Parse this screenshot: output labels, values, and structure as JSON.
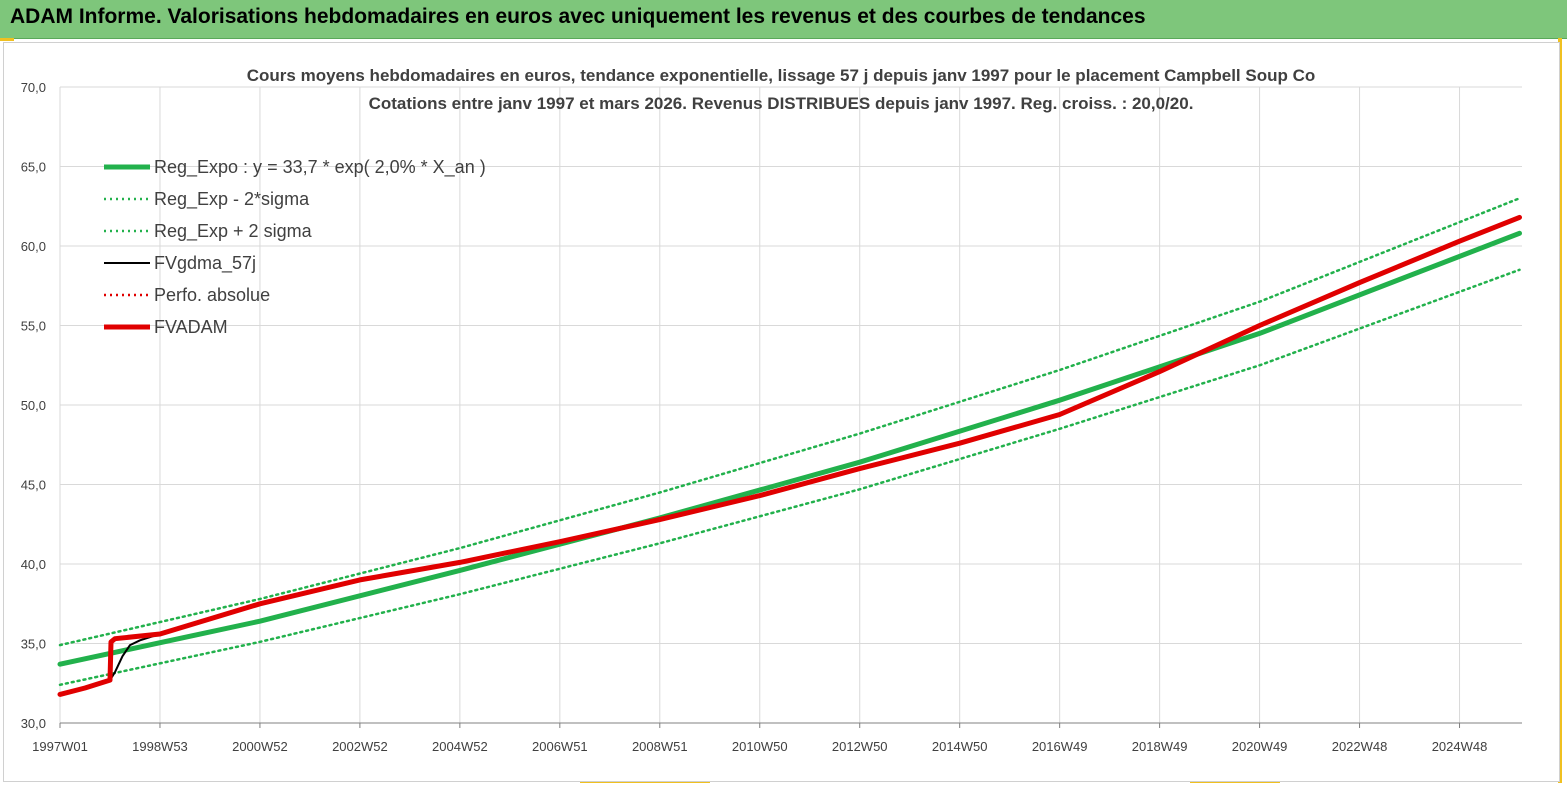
{
  "header": {
    "title": "ADAM Informe. Valorisations hebdomadaires en euros avec uniquement les revenus et des courbes de tendances"
  },
  "colors": {
    "header_bg": "#7ec67b",
    "reg_expo": "#22b14c",
    "band": "#22b14c",
    "fvgdma": "#000000",
    "perfo": "#e00000",
    "fvadam": "#e00000",
    "title_text": "#404040",
    "grid": "#d9d9d9"
  },
  "chart_data": {
    "type": "line",
    "title": "Cours moyens hebdomadaires en euros, tendance exponentielle, lissage 57 j depuis janv 1997 pour le placement Campbell Soup Co",
    "subtitle": "Cotations entre janv 1997 et mars 2026. Revenus DISTRIBUES depuis janv 1997. Reg. croiss. : 20,0/20.",
    "xlabel": "",
    "ylabel": "",
    "ylim": [
      30,
      70
    ],
    "yticks": [
      "30,0",
      "35,0",
      "40,0",
      "45,0",
      "50,0",
      "55,0",
      "60,0",
      "65,0",
      "70,0"
    ],
    "xlim": [
      1997.0,
      2026.25
    ],
    "xticks": [
      {
        "label": "1997W01",
        "x": 1997.0
      },
      {
        "label": "1998W53",
        "x": 1999.0
      },
      {
        "label": "2000W52",
        "x": 2001.0
      },
      {
        "label": "2002W52",
        "x": 2003.0
      },
      {
        "label": "2004W52",
        "x": 2005.0
      },
      {
        "label": "2006W51",
        "x": 2007.0
      },
      {
        "label": "2008W51",
        "x": 2009.0
      },
      {
        "label": "2010W50",
        "x": 2011.0
      },
      {
        "label": "2012W50",
        "x": 2013.0
      },
      {
        "label": "2014W50",
        "x": 2015.0
      },
      {
        "label": "2016W49",
        "x": 2017.0
      },
      {
        "label": "2018W49",
        "x": 2019.0
      },
      {
        "label": "2020W49",
        "x": 2021.0
      },
      {
        "label": "2022W48",
        "x": 2023.0
      },
      {
        "label": "2024W48",
        "x": 2025.0
      }
    ],
    "grid": true,
    "legend_position": "top-left",
    "series": [
      {
        "name": "Reg_Expo : y = 33,7 * exp( 2,0% *  X_an )",
        "style": "thick-solid",
        "color": "#22b14c",
        "x": [
          1997.0,
          2001.0,
          2005.0,
          2009.0,
          2013.0,
          2017.0,
          2021.0,
          2026.2
        ],
        "y": [
          33.7,
          36.4,
          39.6,
          42.9,
          46.4,
          50.3,
          54.5,
          60.8
        ]
      },
      {
        "name": "Reg_Exp - 2*sigma",
        "style": "dotted",
        "color": "#22b14c",
        "x": [
          1997.0,
          2001.0,
          2005.0,
          2009.0,
          2013.0,
          2017.0,
          2021.0,
          2026.2
        ],
        "y": [
          32.4,
          35.1,
          38.1,
          41.3,
          44.7,
          48.5,
          52.5,
          58.5
        ]
      },
      {
        "name": "Reg_Exp + 2 sigma",
        "style": "dotted",
        "color": "#22b14c",
        "x": [
          1997.0,
          2001.0,
          2005.0,
          2009.0,
          2013.0,
          2017.0,
          2021.0,
          2026.2
        ],
        "y": [
          34.9,
          37.8,
          41.0,
          44.5,
          48.2,
          52.2,
          56.5,
          63.0
        ]
      },
      {
        "name": "FVgdma_57j",
        "style": "thin-solid",
        "color": "#000000",
        "x": [
          1997.0,
          1997.5,
          1998.0,
          1998.1,
          1998.25,
          1998.4,
          1998.6,
          1999.0,
          2001.0,
          2003.0,
          2005.0,
          2007.0,
          2009.0,
          2011.0,
          2013.0,
          2015.0,
          2017.0,
          2019.0,
          2021.0,
          2023.0,
          2025.0,
          2026.2
        ],
        "y": [
          31.8,
          32.2,
          32.7,
          33.2,
          34.2,
          34.9,
          35.2,
          35.6,
          37.5,
          39.0,
          40.1,
          41.4,
          42.8,
          44.3,
          46.0,
          47.6,
          49.4,
          52.1,
          55.0,
          57.7,
          60.3,
          61.8
        ]
      },
      {
        "name": "Perfo. absolue",
        "style": "dotted",
        "color": "#e00000",
        "x": [
          1997.0,
          1997.5,
          1998.0,
          1998.02,
          1998.1,
          1999.0,
          2001.0,
          2003.0,
          2005.0,
          2007.0,
          2009.0,
          2011.0,
          2013.0,
          2015.0,
          2017.0,
          2019.0,
          2021.0,
          2023.0,
          2025.0,
          2026.2
        ],
        "y": [
          31.8,
          32.2,
          32.7,
          35.1,
          35.3,
          35.6,
          37.5,
          39.0,
          40.1,
          41.4,
          42.8,
          44.3,
          46.0,
          47.6,
          49.4,
          52.1,
          55.0,
          57.7,
          60.3,
          61.8
        ]
      },
      {
        "name": "FVADAM",
        "style": "thick-solid",
        "color": "#e00000",
        "x": [
          1997.0,
          1997.5,
          1998.0,
          1998.02,
          1998.1,
          1999.0,
          2001.0,
          2003.0,
          2005.0,
          2007.0,
          2009.0,
          2011.0,
          2013.0,
          2015.0,
          2017.0,
          2019.0,
          2021.0,
          2023.0,
          2025.0,
          2026.2
        ],
        "y": [
          31.8,
          32.2,
          32.7,
          35.1,
          35.3,
          35.6,
          37.5,
          39.0,
          40.1,
          41.4,
          42.8,
          44.3,
          46.0,
          47.6,
          49.4,
          52.1,
          55.0,
          57.7,
          60.3,
          61.8
        ]
      }
    ]
  }
}
